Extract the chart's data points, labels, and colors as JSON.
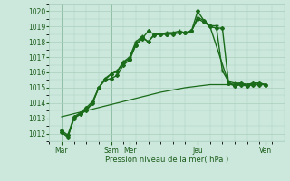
{
  "background_color": "#cce8dc",
  "grid_color": "#aacfbe",
  "line_color": "#1a6b1a",
  "xlabel": "Pression niveau de la mer( hPa )",
  "ylim": [
    1011.5,
    1020.5
  ],
  "yticks": [
    1012,
    1013,
    1014,
    1015,
    1016,
    1017,
    1018,
    1019,
    1020
  ],
  "xlim": [
    0,
    19
  ],
  "x_tick_positions": [
    1,
    5,
    6.5,
    12,
    17.5
  ],
  "x_tick_labels": [
    "Mar",
    "Sam",
    "Mer",
    "Jeu",
    "Ven"
  ],
  "vlines": [
    1,
    5,
    6.5,
    12,
    17.5
  ],
  "series": [
    {
      "x": [
        1,
        1.5,
        2,
        2.5,
        3,
        3.5,
        4,
        4.5,
        5,
        5.5,
        6,
        6.5,
        7,
        7.5,
        8,
        8.5,
        9,
        9.5,
        10,
        10.5,
        11,
        11.5,
        12,
        12.5,
        13,
        13.5,
        14,
        14.5,
        15,
        15.5,
        16,
        16.5,
        17,
        17.5
      ],
      "y": [
        1012.1,
        1011.8,
        1013.0,
        1013.3,
        1013.6,
        1014.0,
        1015.0,
        1015.6,
        1015.9,
        1016.1,
        1016.7,
        1017.0,
        1018.0,
        1018.35,
        1018.0,
        1018.5,
        1018.5,
        1018.6,
        1018.6,
        1018.7,
        1018.6,
        1018.7,
        1019.6,
        1019.4,
        1019.05,
        1019.05,
        1016.1,
        1015.4,
        1015.3,
        1015.3,
        1015.2,
        1015.3,
        1015.3,
        1015.2
      ],
      "marker": "+",
      "linewidth": 1.0,
      "markersize": 3.5,
      "zorder": 3
    },
    {
      "x": [
        1,
        1.5,
        2,
        2.5,
        3,
        3.5,
        4,
        4.5,
        5,
        5.5,
        6,
        6.5,
        7,
        7.5,
        8,
        8.5,
        9,
        9.5,
        10,
        10.5,
        11,
        11.5,
        12,
        12.5,
        13,
        14.5,
        15,
        15.5,
        16,
        16.5,
        17,
        17.5
      ],
      "y": [
        1012.1,
        1011.75,
        1013.0,
        1013.25,
        1013.5,
        1014.0,
        1015.0,
        1015.5,
        1015.9,
        1016.05,
        1016.65,
        1016.9,
        1017.8,
        1018.3,
        1018.0,
        1018.45,
        1018.5,
        1018.5,
        1018.5,
        1018.6,
        1018.6,
        1018.7,
        1019.5,
        1019.3,
        1019.0,
        1015.3,
        1015.2,
        1015.3,
        1015.2,
        1015.3,
        1015.3,
        1015.2
      ],
      "marker": "D",
      "linewidth": 1.0,
      "markersize": 2.0,
      "zorder": 3
    },
    {
      "x": [
        1,
        1.5,
        2,
        2.5,
        3,
        3.5,
        4,
        4.5,
        5,
        5.5,
        6,
        6.5,
        7,
        7.5,
        8,
        8.5,
        9,
        9.5,
        10,
        10.5,
        11,
        11.5,
        12,
        12.5,
        13,
        13.5,
        14,
        14.5,
        15,
        15.5,
        16,
        16.5,
        17,
        17.5
      ],
      "y": [
        1012.2,
        1011.9,
        1013.1,
        1013.35,
        1013.7,
        1014.1,
        1015.0,
        1015.5,
        1015.6,
        1015.8,
        1016.5,
        1016.8,
        1017.8,
        1018.2,
        1018.7,
        1018.5,
        1018.5,
        1018.5,
        1018.55,
        1018.6,
        1018.6,
        1018.7,
        1020.0,
        1019.4,
        1019.0,
        1018.9,
        1018.9,
        1015.3,
        1015.1,
        1015.2,
        1015.1,
        1015.2,
        1015.2,
        1015.2
      ],
      "marker": "D",
      "linewidth": 1.0,
      "markersize": 2.0,
      "zorder": 3
    },
    {
      "x": [
        1,
        3,
        5,
        7,
        9,
        11,
        13,
        15,
        17,
        17.5
      ],
      "y": [
        1013.1,
        1013.5,
        1013.9,
        1014.3,
        1014.7,
        1015.0,
        1015.2,
        1015.2,
        1015.2,
        1015.2
      ],
      "marker": null,
      "linewidth": 0.9,
      "markersize": 0,
      "zorder": 2
    }
  ]
}
